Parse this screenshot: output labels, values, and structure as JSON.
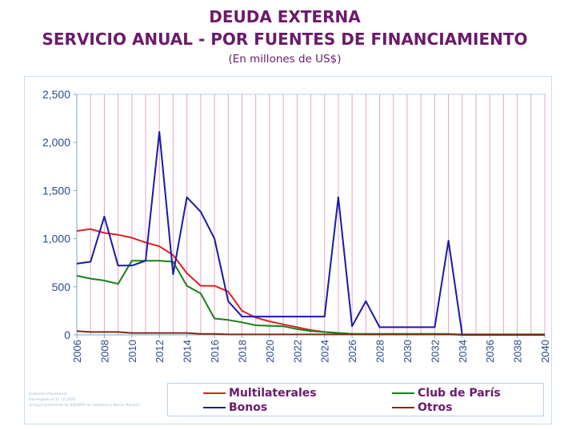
{
  "header": {
    "title_line1": "DEUDA EXTERNA",
    "title_line2": "SERVICIO ANUAL - POR FUENTES DE FINANCIAMIENTO",
    "subtitle": "(En millones de US$)"
  },
  "footnote": {
    "lines": [
      "Evolución Previsional",
      "Devengado al 31.12.2020",
      "(incluye préstamos de BID/BIRF en Gobierno y Banco Nación)"
    ]
  },
  "chart_data": {
    "type": "line",
    "title": "DEUDA EXTERNA - SERVICIO ANUAL - POR FUENTES DE FINANCIAMIENTO",
    "subtitle": "(En millones de US$)",
    "xlabel": "",
    "ylabel": "",
    "x": [
      2006,
      2007,
      2008,
      2009,
      2010,
      2011,
      2012,
      2013,
      2014,
      2015,
      2016,
      2017,
      2018,
      2019,
      2020,
      2021,
      2022,
      2023,
      2024,
      2025,
      2026,
      2027,
      2028,
      2029,
      2030,
      2031,
      2032,
      2033,
      2034,
      2035,
      2036,
      2037,
      2038,
      2039,
      2040
    ],
    "xlim": [
      2006,
      2040
    ],
    "ylim": [
      0,
      2500
    ],
    "yticks": [
      0,
      500,
      1000,
      1500,
      2000,
      2500
    ],
    "ytick_labels": [
      "0",
      "500",
      "1,000",
      "1,500",
      "2,000",
      "2,500"
    ],
    "xtick_labels": [
      "2006",
      "2008",
      "2010",
      "2012",
      "2014",
      "2016",
      "2018",
      "2020",
      "2022",
      "2024",
      "2026",
      "2028",
      "2030",
      "2032",
      "2034",
      "2036",
      "2038",
      "2040"
    ],
    "grid": "vertical",
    "legend_position": "bottom",
    "series": [
      {
        "name": "Multilaterales",
        "color": "#e02020",
        "values": [
          1080,
          1100,
          1060,
          1040,
          1010,
          960,
          920,
          830,
          640,
          510,
          510,
          450,
          250,
          180,
          140,
          110,
          80,
          50,
          30,
          20,
          10,
          5,
          5,
          5,
          5,
          5,
          5,
          5,
          0,
          0,
          0,
          0,
          0,
          0,
          0
        ]
      },
      {
        "name": "Club de París",
        "color": "#168016",
        "values": [
          615,
          585,
          565,
          530,
          770,
          770,
          770,
          760,
          510,
          430,
          170,
          155,
          130,
          100,
          95,
          90,
          60,
          40,
          30,
          20,
          10,
          10,
          10,
          10,
          10,
          10,
          10,
          10,
          0,
          0,
          0,
          0,
          0,
          0,
          0
        ]
      },
      {
        "name": "Bonos",
        "color": "#1a1aa8",
        "values": [
          740,
          760,
          1230,
          720,
          720,
          770,
          2110,
          630,
          1430,
          1280,
          1000,
          350,
          190,
          190,
          190,
          190,
          190,
          190,
          190,
          1430,
          90,
          350,
          80,
          80,
          80,
          80,
          80,
          980,
          0,
          0,
          0,
          0,
          0,
          0,
          0
        ]
      },
      {
        "name": "Otros",
        "color": "#7a3010",
        "values": [
          40,
          30,
          30,
          30,
          20,
          20,
          20,
          20,
          20,
          10,
          10,
          5,
          5,
          5,
          5,
          5,
          5,
          5,
          5,
          5,
          5,
          5,
          5,
          5,
          5,
          5,
          5,
          5,
          5,
          5,
          5,
          5,
          5,
          5,
          5
        ]
      }
    ]
  }
}
